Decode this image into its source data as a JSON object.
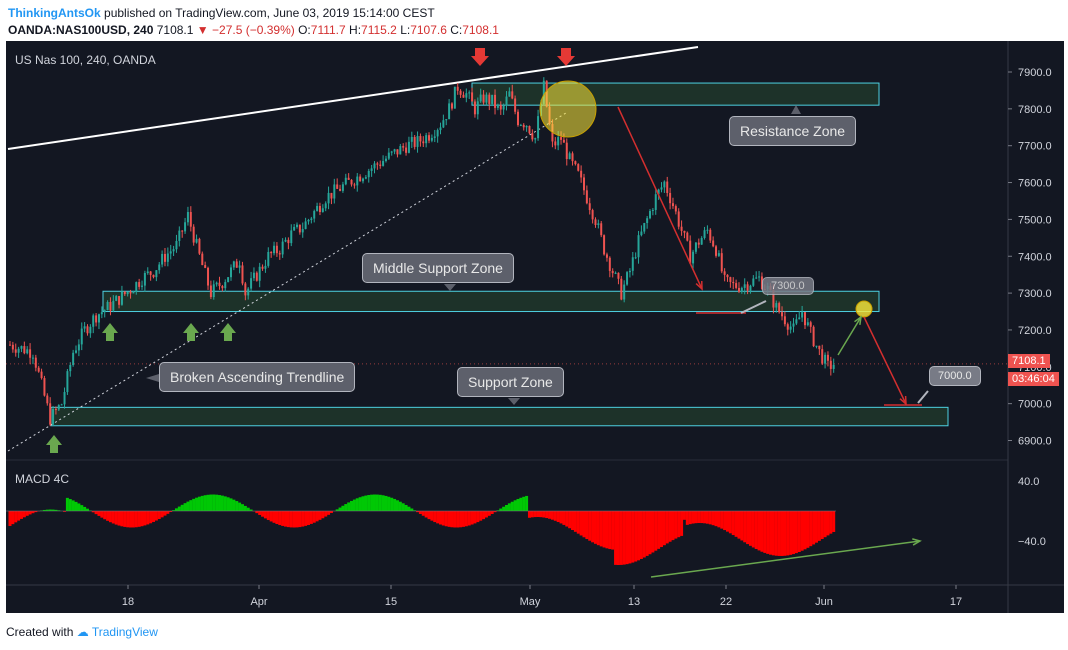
{
  "header": {
    "author": "ThinkingAntsOk",
    "published": "published on TradingView.com, June 03, 2019 15:14:00 CEST",
    "symbol": "OANDA:NAS100USD, 240",
    "last": "7108.1",
    "change": "−27.5 (−0.39%)",
    "o_label": "O:",
    "o": "7111.7",
    "h_label": "H:",
    "h": "7115.2",
    "l_label": "L:",
    "l": "7107.6",
    "c_label": "C:",
    "c": "7108.1"
  },
  "legend": "US Nas 100, 240, OANDA",
  "macd_label": "MACD 4C",
  "price_badge": "7108.1",
  "countdown_badge": "03:46:04",
  "footer": {
    "created": "Created with",
    "brand": "TradingView"
  },
  "annotations": {
    "resistance": "Resistance Zone",
    "middle": "Middle Support Zone",
    "trendline": "Broken Ascending Trendline",
    "support": "Support Zone",
    "target": "7000.0",
    "hidden_box": "7300.0"
  },
  "colors": {
    "up": "#26a69a",
    "down": "#ef5350",
    "bg": "#131722",
    "zone_border": "#4dd0e1",
    "macd_up": "#00c805",
    "macd_down": "#ff0000"
  },
  "chart_data": {
    "type": "candlestick",
    "interval": "240",
    "price_axis": {
      "ticks": [
        7900,
        7800,
        7700,
        7600,
        7500,
        7400,
        7300,
        7200,
        7100,
        7000,
        6900
      ],
      "ylim": [
        6860,
        7960
      ]
    },
    "time_axis": {
      "ticks": [
        "18",
        "Apr",
        "15",
        "May",
        "13",
        "22",
        "Jun",
        "17"
      ]
    },
    "close_path": [
      [
        0,
        7160
      ],
      [
        8,
        7140
      ],
      [
        12,
        7020
      ],
      [
        14,
        6960
      ],
      [
        18,
        7000
      ],
      [
        22,
        7140
      ],
      [
        26,
        7200
      ],
      [
        30,
        7240
      ],
      [
        34,
        7260
      ],
      [
        38,
        7285
      ],
      [
        42,
        7310
      ],
      [
        46,
        7340
      ],
      [
        50,
        7360
      ],
      [
        54,
        7400
      ],
      [
        58,
        7430
      ],
      [
        62,
        7510
      ],
      [
        66,
        7400
      ],
      [
        70,
        7300
      ],
      [
        74,
        7330
      ],
      [
        78,
        7370
      ],
      [
        80,
        7390
      ],
      [
        82,
        7300
      ],
      [
        86,
        7350
      ],
      [
        90,
        7400
      ],
      [
        94,
        7420
      ],
      [
        98,
        7460
      ],
      [
        102,
        7480
      ],
      [
        106,
        7520
      ],
      [
        110,
        7560
      ],
      [
        114,
        7580
      ],
      [
        118,
        7600
      ],
      [
        122,
        7620
      ],
      [
        126,
        7640
      ],
      [
        130,
        7660
      ],
      [
        134,
        7680
      ],
      [
        138,
        7700
      ],
      [
        142,
        7710
      ],
      [
        146,
        7730
      ],
      [
        150,
        7760
      ],
      [
        153,
        7800
      ],
      [
        156,
        7860
      ],
      [
        159,
        7840
      ],
      [
        162,
        7800
      ],
      [
        165,
        7830
      ],
      [
        168,
        7820
      ],
      [
        171,
        7790
      ],
      [
        174,
        7840
      ],
      [
        177,
        7770
      ],
      [
        180,
        7760
      ],
      [
        183,
        7720
      ],
      [
        186,
        7860
      ],
      [
        189,
        7700
      ],
      [
        192,
        7720
      ],
      [
        195,
        7660
      ],
      [
        198,
        7620
      ],
      [
        201,
        7560
      ],
      [
        204,
        7500
      ],
      [
        207,
        7420
      ],
      [
        210,
        7360
      ],
      [
        213,
        7300
      ],
      [
        216,
        7360
      ],
      [
        219,
        7440
      ],
      [
        222,
        7500
      ],
      [
        225,
        7560
      ],
      [
        228,
        7600
      ],
      [
        231,
        7540
      ],
      [
        234,
        7470
      ],
      [
        237,
        7400
      ],
      [
        240,
        7440
      ],
      [
        243,
        7470
      ],
      [
        246,
        7420
      ],
      [
        249,
        7330
      ],
      [
        252,
        7320
      ],
      [
        255,
        7320
      ],
      [
        258,
        7330
      ],
      [
        261,
        7340
      ],
      [
        264,
        7310
      ],
      [
        267,
        7260
      ],
      [
        270,
        7230
      ],
      [
        273,
        7200
      ],
      [
        276,
        7250
      ],
      [
        279,
        7190
      ],
      [
        282,
        7140
      ],
      [
        285,
        7100
      ],
      [
        287,
        7108.1
      ]
    ],
    "zones": [
      {
        "name": "Resistance Zone",
        "from": 7810,
        "to": 7870
      },
      {
        "name": "Middle Support Zone",
        "from": 7250,
        "to": 7305
      },
      {
        "name": "Support Zone",
        "from": 6940,
        "to": 6990
      }
    ],
    "macd": {
      "ticks": [
        40.0,
        -40.0
      ]
    }
  }
}
